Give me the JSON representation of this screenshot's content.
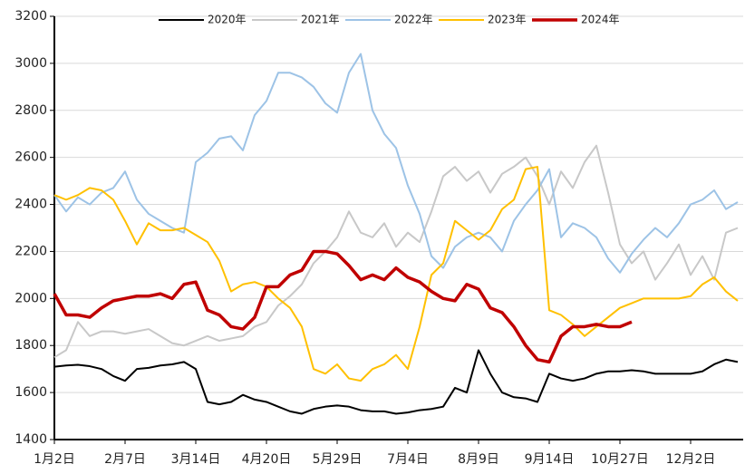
{
  "chart_data": {
    "type": "line",
    "categories": [
      "1月2日",
      null,
      null,
      null,
      null,
      null,
      "2月7日",
      null,
      null,
      null,
      null,
      null,
      "3月14日",
      null,
      null,
      null,
      null,
      null,
      "4月20日",
      null,
      null,
      null,
      null,
      null,
      "5月29日",
      null,
      null,
      null,
      null,
      null,
      "7月4日",
      null,
      null,
      null,
      null,
      null,
      "8月9日",
      null,
      null,
      null,
      null,
      null,
      "9月14日",
      null,
      null,
      null,
      null,
      null,
      "10月27日",
      null,
      null,
      null,
      null,
      null,
      "12月2日",
      null,
      null,
      null,
      null
    ],
    "series": [
      {
        "name": "2020年",
        "color": "#000000",
        "values": [
          1710,
          1715,
          1718,
          1712,
          1700,
          1670,
          1650,
          1700,
          1705,
          1715,
          1720,
          1730,
          1700,
          1560,
          1550,
          1560,
          1590,
          1570,
          1560,
          1540,
          1520,
          1510,
          1530,
          1540,
          1545,
          1540,
          1525,
          1520,
          1520,
          1510,
          1515,
          1525,
          1530,
          1540,
          1620,
          1600,
          1780,
          1680,
          1600,
          1580,
          1575,
          1560,
          1680,
          1660,
          1650,
          1660,
          1680,
          1690,
          1690,
          1695,
          1690,
          1680,
          1680,
          1680,
          1680,
          1690,
          1720,
          1740,
          1730
        ]
      },
      {
        "name": "2021年",
        "color": "#c8c8c8",
        "values": [
          1750,
          1780,
          1900,
          1840,
          1860,
          1860,
          1850,
          1860,
          1870,
          1840,
          1810,
          1800,
          1820,
          1840,
          1820,
          1830,
          1840,
          1880,
          1900,
          1970,
          2010,
          2060,
          2150,
          2200,
          2260,
          2370,
          2280,
          2260,
          2320,
          2220,
          2280,
          2240,
          2370,
          2520,
          2560,
          2500,
          2540,
          2450,
          2530,
          2560,
          2600,
          2520,
          2400,
          2540,
          2470,
          2580,
          2650,
          2450,
          2230,
          2150,
          2200,
          2080,
          2150,
          2230,
          2100,
          2180,
          2080,
          2280,
          2300
        ]
      },
      {
        "name": "2022年",
        "color": "#9dc3e6",
        "values": [
          2440,
          2370,
          2430,
          2400,
          2450,
          2470,
          2540,
          2420,
          2360,
          2330,
          2300,
          2280,
          2580,
          2620,
          2680,
          2690,
          2630,
          2780,
          2840,
          2960,
          2960,
          2940,
          2900,
          2830,
          2790,
          2960,
          3040,
          2800,
          2700,
          2640,
          2480,
          2360,
          2180,
          2130,
          2220,
          2260,
          2280,
          2260,
          2200,
          2330,
          2400,
          2460,
          2550,
          2260,
          2320,
          2300,
          2260,
          2170,
          2110,
          2190,
          2250,
          2300,
          2260,
          2320,
          2400,
          2420,
          2460,
          2380,
          2410
        ]
      },
      {
        "name": "2023年",
        "color": "#ffc000",
        "values": [
          2440,
          2420,
          2440,
          2470,
          2460,
          2420,
          2330,
          2230,
          2320,
          2290,
          2290,
          2300,
          2270,
          2240,
          2160,
          2030,
          2060,
          2070,
          2050,
          2000,
          1960,
          1880,
          1700,
          1680,
          1720,
          1660,
          1650,
          1700,
          1720,
          1760,
          1700,
          1880,
          2100,
          2150,
          2330,
          2290,
          2250,
          2290,
          2380,
          2420,
          2550,
          2560,
          1950,
          1930,
          1890,
          1840,
          1880,
          1920,
          1960,
          1980,
          2000,
          2000,
          2000,
          2000,
          2010,
          2060,
          2090,
          2030,
          1990
        ]
      },
      {
        "name": "2024年",
        "color": "#c00000",
        "values": [
          2020,
          1930,
          1930,
          1920,
          1960,
          1990,
          2000,
          2010,
          2010,
          2020,
          2000,
          2060,
          2070,
          1950,
          1930,
          1880,
          1870,
          1920,
          2050,
          2050,
          2100,
          2120,
          2200,
          2200,
          2190,
          2140,
          2080,
          2100,
          2080,
          2130,
          2090,
          2070,
          2030,
          2000,
          1990,
          2060,
          2040,
          1960,
          1940,
          1880,
          1800,
          1740,
          1730,
          1840,
          1880,
          1880,
          1890,
          1880,
          1880,
          1900,
          null,
          null,
          null,
          null,
          null,
          null,
          null,
          null,
          null
        ]
      }
    ],
    "ylim": [
      1400,
      3200
    ],
    "yticks": [
      1400,
      1600,
      1800,
      2000,
      2200,
      2400,
      2600,
      2800,
      3000,
      3200
    ],
    "grid": true,
    "legend": "top"
  }
}
